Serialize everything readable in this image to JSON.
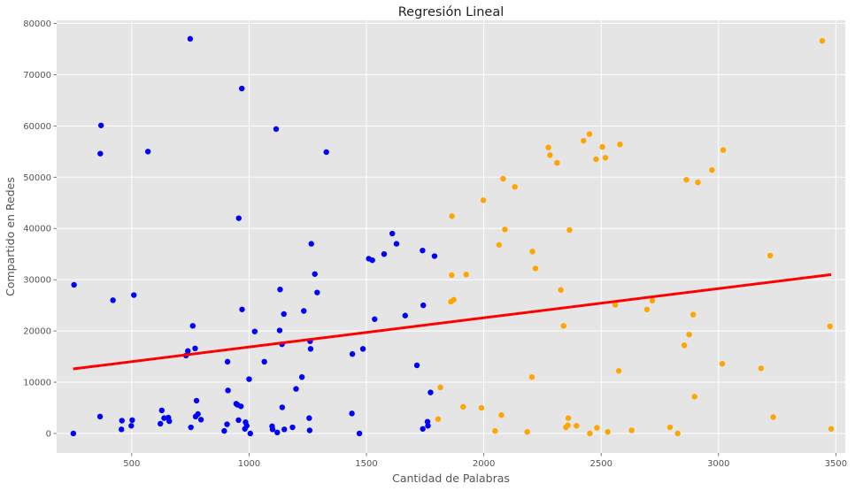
{
  "chart_data": {
    "type": "scatter",
    "title": "Regresión Lineal",
    "xlabel": "Cantidad de Palabras",
    "ylabel": "Compartido en Redes",
    "xlim": [
      180,
      3540
    ],
    "ylim": [
      -3800,
      80600
    ],
    "xticks": [
      500,
      1000,
      1500,
      2000,
      2500,
      3000,
      3500
    ],
    "yticks": [
      0,
      10000,
      20000,
      30000,
      40000,
      50000,
      60000,
      70000,
      80000
    ],
    "grid": true,
    "colors": {
      "background": "#e5e5e5",
      "grid": "#ffffff",
      "series_a": "#0000ff",
      "series_b": "#ffa500",
      "regression": "#ff0000"
    },
    "series": [
      {
        "color": "#0000ff",
        "points": [
          [
            251,
            0
          ],
          [
            254,
            29000
          ],
          [
            365,
            3300
          ],
          [
            366,
            54600
          ],
          [
            369,
            60100
          ],
          [
            420,
            26000
          ],
          [
            456,
            800
          ],
          [
            458,
            2500
          ],
          [
            498,
            1500
          ],
          [
            502,
            2600
          ],
          [
            509,
            27000
          ],
          [
            569,
            55000
          ],
          [
            622,
            1900
          ],
          [
            628,
            4500
          ],
          [
            638,
            3000
          ],
          [
            656,
            3100
          ],
          [
            660,
            2400
          ],
          [
            731,
            15200
          ],
          [
            739,
            16100
          ],
          [
            749,
            77000
          ],
          [
            752,
            1200
          ],
          [
            760,
            21000
          ],
          [
            770,
            16600
          ],
          [
            772,
            3300
          ],
          [
            776,
            6400
          ],
          [
            782,
            3800
          ],
          [
            795,
            2700
          ],
          [
            894,
            500
          ],
          [
            906,
            1800
          ],
          [
            908,
            14000
          ],
          [
            910,
            8400
          ],
          [
            945,
            5800
          ],
          [
            950,
            5600
          ],
          [
            955,
            2600
          ],
          [
            956,
            42000
          ],
          [
            965,
            5300
          ],
          [
            969,
            67300
          ],
          [
            970,
            24200
          ],
          [
            982,
            900
          ],
          [
            985,
            2200
          ],
          [
            990,
            1500
          ],
          [
            1000,
            10600
          ],
          [
            1005,
            0
          ],
          [
            1024,
            19900
          ],
          [
            1065,
            14000
          ],
          [
            1098,
            1400
          ],
          [
            1100,
            800
          ],
          [
            1115,
            59400
          ],
          [
            1120,
            200
          ],
          [
            1130,
            20100
          ],
          [
            1132,
            28100
          ],
          [
            1140,
            17400
          ],
          [
            1141,
            5100
          ],
          [
            1148,
            23300
          ],
          [
            1150,
            800
          ],
          [
            1185,
            1200
          ],
          [
            1200,
            8700
          ],
          [
            1225,
            11000
          ],
          [
            1233,
            23900
          ],
          [
            1256,
            3000
          ],
          [
            1258,
            600
          ],
          [
            1260,
            18000
          ],
          [
            1262,
            16500
          ],
          [
            1265,
            37000
          ],
          [
            1280,
            31100
          ],
          [
            1290,
            27500
          ],
          [
            1329,
            54900
          ],
          [
            1438,
            3900
          ],
          [
            1440,
            15500
          ],
          [
            1470,
            0
          ],
          [
            1485,
            16500
          ],
          [
            1510,
            34100
          ],
          [
            1525,
            33800
          ],
          [
            1535,
            22300
          ],
          [
            1575,
            35000
          ],
          [
            1610,
            39000
          ],
          [
            1628,
            37000
          ],
          [
            1665,
            23000
          ],
          [
            1715,
            13300
          ],
          [
            1739,
            35700
          ],
          [
            1740,
            900
          ],
          [
            1742,
            25000
          ],
          [
            1760,
            2300
          ],
          [
            1762,
            1500
          ],
          [
            1773,
            8000
          ],
          [
            1790,
            34600
          ]
        ]
      },
      {
        "color": "#ffa500",
        "points": [
          [
            1805,
            2800
          ],
          [
            1815,
            9000
          ],
          [
            1860,
            25700
          ],
          [
            1863,
            30900
          ],
          [
            1864,
            42400
          ],
          [
            1872,
            26100
          ],
          [
            1912,
            5200
          ],
          [
            1925,
            31000
          ],
          [
            1990,
            5000
          ],
          [
            1998,
            45500
          ],
          [
            2048,
            500
          ],
          [
            2065,
            36800
          ],
          [
            2075,
            3600
          ],
          [
            2082,
            49700
          ],
          [
            2090,
            39800
          ],
          [
            2132,
            48100
          ],
          [
            2185,
            300
          ],
          [
            2205,
            11000
          ],
          [
            2207,
            35500
          ],
          [
            2220,
            32200
          ],
          [
            2275,
            55800
          ],
          [
            2282,
            54300
          ],
          [
            2312,
            52800
          ],
          [
            2328,
            28000
          ],
          [
            2340,
            21000
          ],
          [
            2350,
            1200
          ],
          [
            2358,
            1600
          ],
          [
            2360,
            3000
          ],
          [
            2365,
            39700
          ],
          [
            2395,
            1500
          ],
          [
            2425,
            57100
          ],
          [
            2450,
            58400
          ],
          [
            2452,
            0
          ],
          [
            2478,
            53500
          ],
          [
            2482,
            1100
          ],
          [
            2505,
            55900
          ],
          [
            2518,
            53800
          ],
          [
            2528,
            300
          ],
          [
            2560,
            25100
          ],
          [
            2575,
            12200
          ],
          [
            2580,
            56400
          ],
          [
            2630,
            600
          ],
          [
            2695,
            24200
          ],
          [
            2718,
            25900
          ],
          [
            2793,
            1200
          ],
          [
            2826,
            0
          ],
          [
            2854,
            17200
          ],
          [
            2863,
            49500
          ],
          [
            2875,
            19300
          ],
          [
            2892,
            23200
          ],
          [
            2898,
            7200
          ],
          [
            2912,
            49000
          ],
          [
            2972,
            51400
          ],
          [
            3016,
            13600
          ],
          [
            3020,
            55300
          ],
          [
            3181,
            12700
          ],
          [
            3220,
            34700
          ],
          [
            3233,
            3200
          ],
          [
            3442,
            76600
          ],
          [
            3475,
            20900
          ],
          [
            3480,
            900
          ]
        ]
      }
    ],
    "regression": {
      "x": [
        250,
        3480
      ],
      "y": [
        12600,
        31000
      ]
    }
  }
}
